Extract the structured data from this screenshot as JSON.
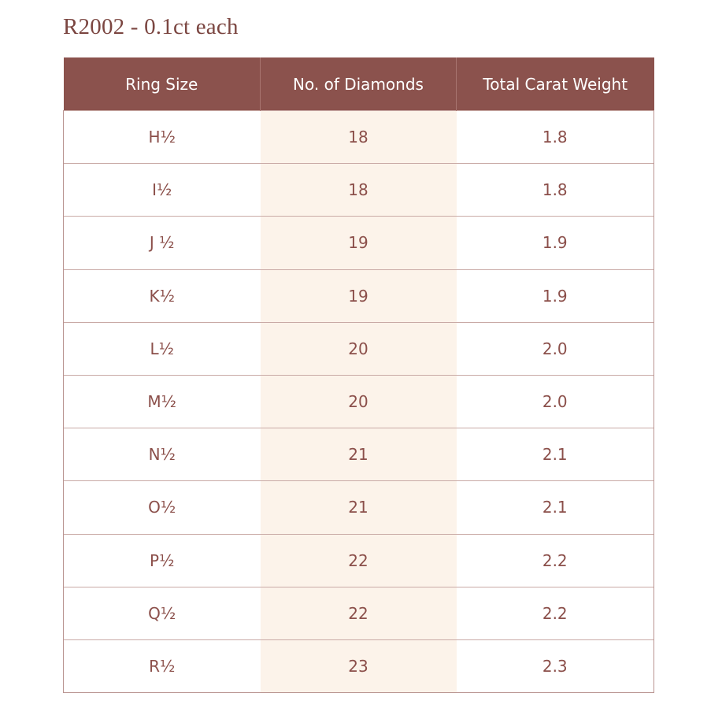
{
  "title": "R2002 - 0.1ct each",
  "table": {
    "header": [
      "Ring Size",
      "No. of Diamonds",
      "Total Carat Weight"
    ],
    "rows": [
      [
        "H½",
        "18",
        "1.8"
      ],
      [
        "I½",
        "18",
        "1.8"
      ],
      [
        "J ½",
        "19",
        "1.9"
      ],
      [
        "K½",
        "19",
        "1.9"
      ],
      [
        "L½",
        "20",
        "2.0"
      ],
      [
        "M½",
        "20",
        "2.0"
      ],
      [
        "N½",
        "21",
        "2.1"
      ],
      [
        "O½",
        "21",
        "2.1"
      ],
      [
        "P½",
        "22",
        "2.2"
      ],
      [
        "Q½",
        "22",
        "2.2"
      ],
      [
        "R½",
        "23",
        "2.3"
      ]
    ]
  }
}
